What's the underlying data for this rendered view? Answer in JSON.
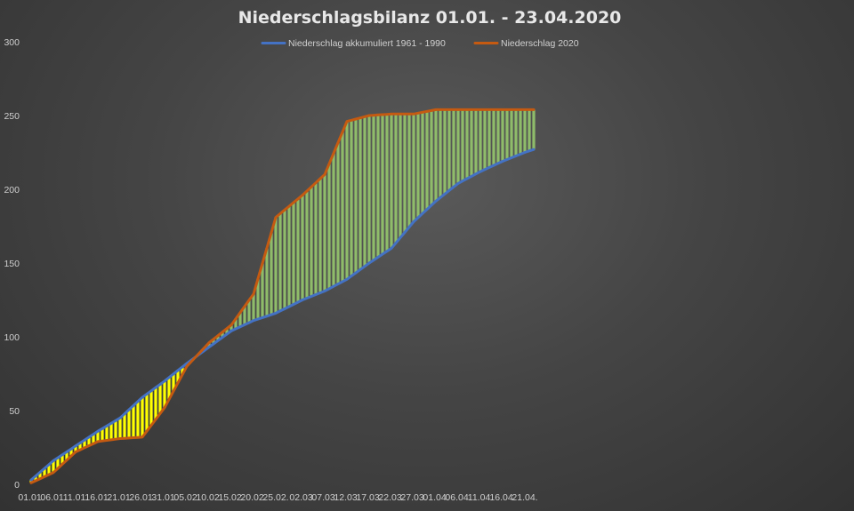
{
  "chart_data": {
    "type": "line",
    "title": "Niederschlagsbilanz 01.01. - 23.04.2020",
    "xlabel": "",
    "ylabel": "",
    "ylim": [
      0,
      300
    ],
    "yticks": [
      0,
      50,
      100,
      150,
      200,
      250,
      300
    ],
    "grid": false,
    "legend_position": "top",
    "x_tick_labels": [
      "01.01.",
      "06.01.",
      "11.01.",
      "16.01.",
      "21.01.",
      "26.01.",
      "31.01.",
      "05.02.",
      "10.02.",
      "15.02.",
      "20.02.",
      "25.02.",
      "02.03.",
      "07.03.",
      "12.03.",
      "17.03.",
      "22.03.",
      "27.03.",
      "01.04.",
      "06.04.",
      "11.04.",
      "16.04.",
      "21.04."
    ],
    "x": [
      "01.01.",
      "06.01.",
      "11.01.",
      "16.01.",
      "21.01.",
      "26.01.",
      "31.01.",
      "05.02.",
      "10.02.",
      "15.02.",
      "20.02.",
      "25.02.",
      "02.03.",
      "07.03.",
      "12.03.",
      "17.03.",
      "22.03.",
      "27.03.",
      "01.04.",
      "06.04.",
      "11.04.",
      "16.04.",
      "21.04.",
      "23.04."
    ],
    "series": [
      {
        "name": "Niederschlag akkumuliert 1961 - 1990",
        "color": "#4472c4",
        "values": [
          3,
          16,
          26,
          36,
          45,
          59,
          70,
          82,
          93,
          104,
          111,
          116,
          125,
          131,
          139,
          150,
          160,
          178,
          192,
          204,
          212,
          219,
          225,
          227
        ]
      },
      {
        "name": "Niederschlag 2020",
        "color": "#c55a11",
        "values": [
          1,
          8,
          22,
          29,
          31,
          32,
          52,
          80,
          96,
          108,
          129,
          181,
          196,
          210,
          246,
          250,
          251,
          251,
          254,
          254,
          254,
          254,
          254,
          254
        ]
      }
    ],
    "fill_colors": {
      "deficit": "#ffff00",
      "surplus": "#8fbc6a"
    }
  }
}
